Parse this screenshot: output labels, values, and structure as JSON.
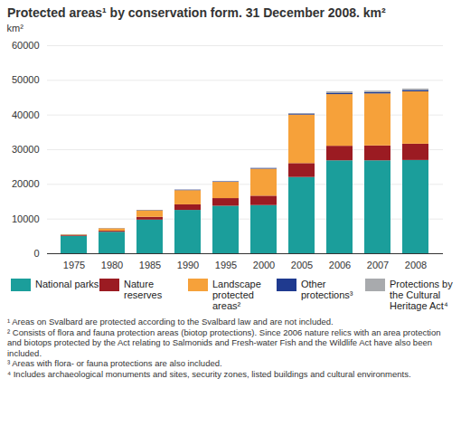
{
  "chart_data": {
    "type": "bar",
    "title": "Protected areas¹ by conservation form. 31 December 2008. km²",
    "y_label": "km²",
    "categories": [
      "1975",
      "1980",
      "1985",
      "1990",
      "1995",
      "2000",
      "2005",
      "2006",
      "2007",
      "2008"
    ],
    "series": [
      {
        "name": "National parks",
        "color": "#1b9e9b",
        "values": [
          5000,
          6200,
          9700,
          12500,
          13700,
          13900,
          22000,
          26800,
          26800,
          26900
        ]
      },
      {
        "name": "Nature reserves",
        "color": "#9b1b22",
        "values": [
          200,
          300,
          800,
          1600,
          2200,
          2700,
          4000,
          4200,
          4300,
          4700
        ]
      },
      {
        "name": "Landscape protected areas²",
        "color": "#f6a13a",
        "values": [
          200,
          700,
          1900,
          4100,
          4700,
          7800,
          14000,
          14900,
          15000,
          15100
        ]
      },
      {
        "name": "Other protections³",
        "color": "#1f3a8f",
        "values": [
          50,
          50,
          100,
          150,
          150,
          200,
          300,
          400,
          400,
          400
        ]
      },
      {
        "name": "Protections by the Cultural Heritage Act⁴",
        "color": "#a8aaad",
        "values": [
          0,
          0,
          0,
          0,
          0,
          0,
          100,
          400,
          400,
          400
        ]
      }
    ],
    "ylim": [
      0,
      60000
    ],
    "yticks": [
      0,
      10000,
      20000,
      30000,
      40000,
      50000,
      60000
    ],
    "grid": true,
    "stacked": true,
    "legend": "bottom",
    "annotations": [
      "¹ Areas on Svalbard are protected according to the Svalbard law and are not included.",
      "² Consists of flora and fauna protection areas (biotop protections). Since 2006 nature relics with an area protection and biotops protected by the Act relating to Salmonids and Fresh-water Fish and the Wildlife Act have also been included.",
      "³ Areas with flora- or fauna protections are also included.",
      "⁴ Includes archaeological monuments and sites, security zones, listed buildings and cultural environments."
    ]
  }
}
